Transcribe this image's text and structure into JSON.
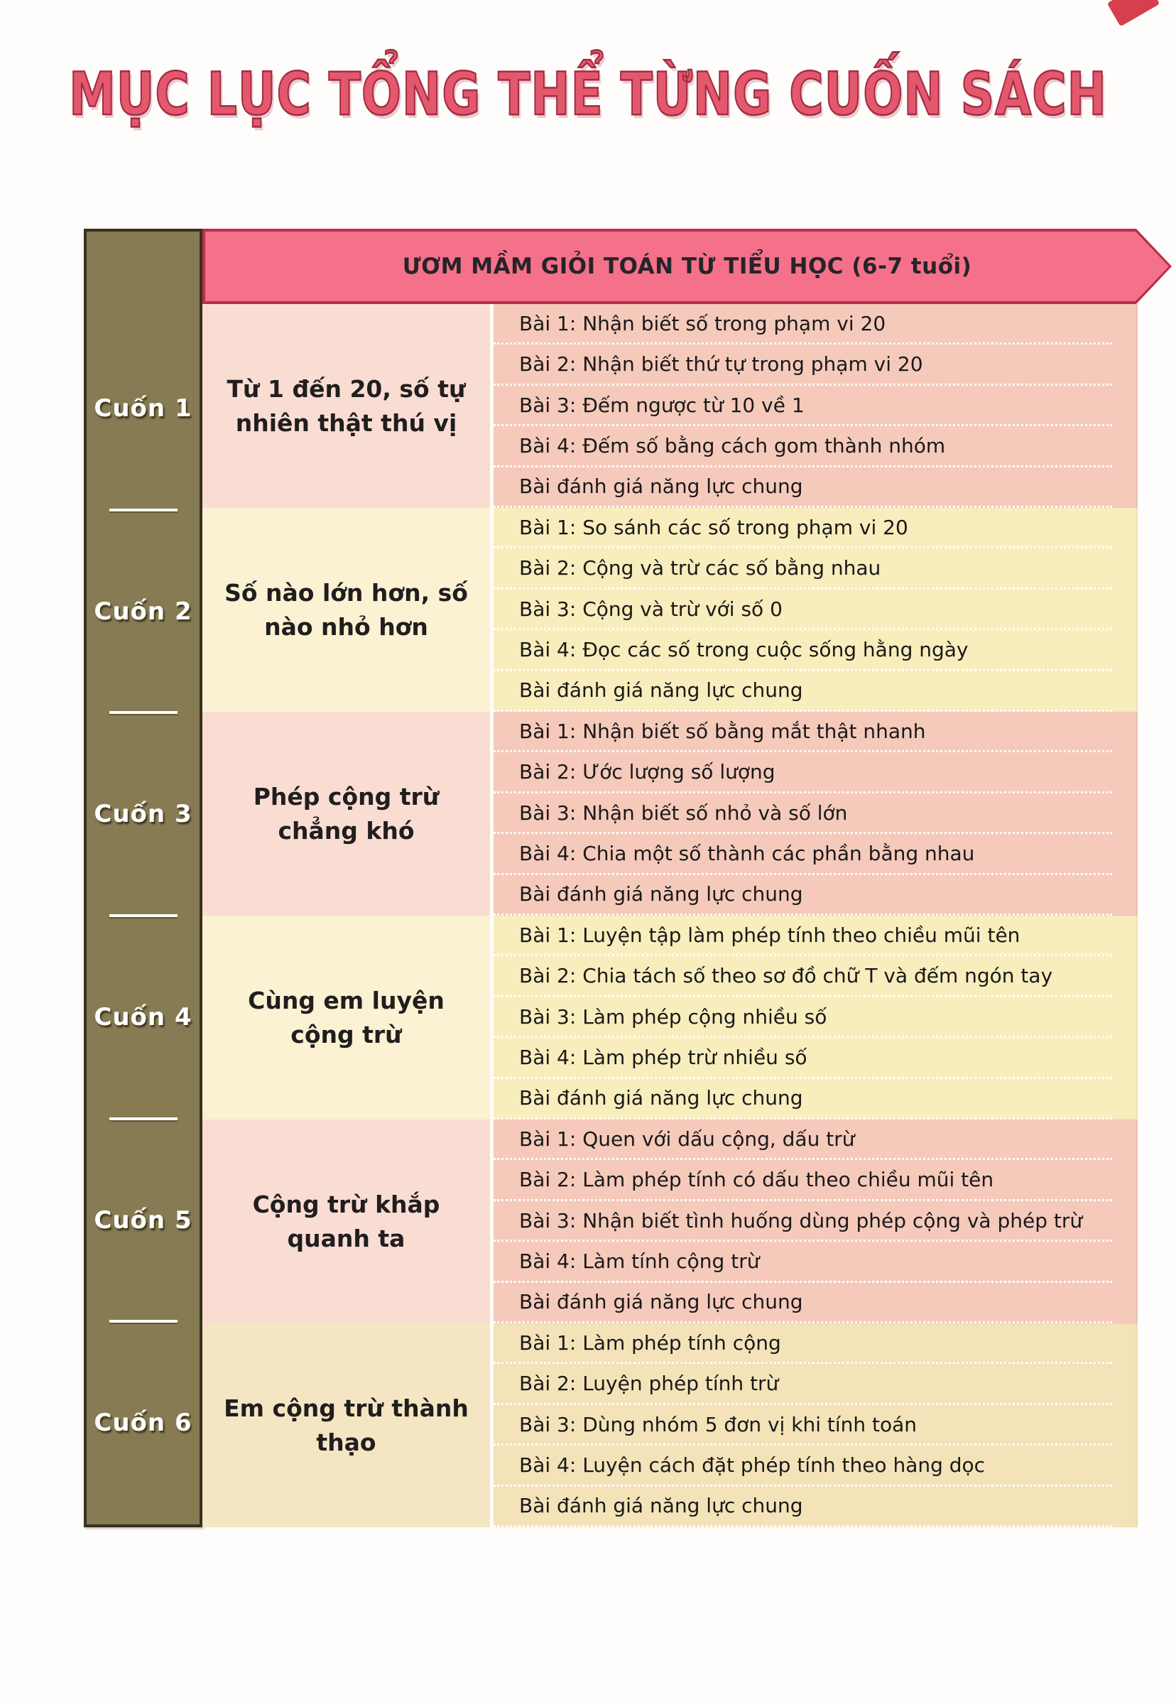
{
  "page_title": "MỤC LỤC TỔNG THỂ TỪNG CUỐN SÁCH",
  "table": {
    "header": "ƯƠM MẦM GIỎI TOÁN TỪ TIỂU HỌC (6-7 tuổi)",
    "sections": [
      {
        "book_label": "Cuốn 1",
        "topic": "Từ 1 đến 20, số tự nhiên thật thú vị",
        "tone": "pink",
        "lessons": [
          "Bài 1: Nhận biết số trong phạm vi 20",
          "Bài 2: Nhận biết thứ tự trong phạm vi 20",
          "Bài 3: Đếm ngược từ 10 về 1",
          "Bài 4: Đếm số bằng cách gom thành nhóm",
          "Bài đánh giá năng lực chung"
        ]
      },
      {
        "book_label": "Cuốn 2",
        "topic": "Số nào lớn hơn, số nào nhỏ hơn",
        "tone": "cream",
        "lessons": [
          "Bài 1: So sánh các số trong phạm vi 20",
          "Bài 2: Cộng và trừ các số bằng nhau",
          "Bài 3: Cộng và trừ với số 0",
          "Bài 4: Đọc các số trong cuộc sống hằng ngày",
          "Bài đánh giá năng lực chung"
        ]
      },
      {
        "book_label": "Cuốn 3",
        "topic": "Phép cộng trừ chẳng khó",
        "tone": "pink",
        "lessons": [
          "Bài 1: Nhận biết số bằng mắt thật nhanh",
          "Bài 2: Ước lượng số lượng",
          "Bài 3: Nhận biết số nhỏ và số lớn",
          "Bài 4: Chia một số thành các phần bằng nhau",
          "Bài đánh giá năng lực chung"
        ]
      },
      {
        "book_label": "Cuốn 4",
        "topic": "Cùng em luyện cộng trừ",
        "tone": "cream",
        "lessons": [
          "Bài 1: Luyện tập làm phép tính theo chiều mũi tên",
          "Bài 2: Chia tách số theo sơ đồ chữ T và đếm ngón tay",
          "Bài 3: Làm phép cộng nhiều số",
          "Bài 4: Làm phép trừ nhiều số",
          "Bài đánh giá năng lực chung"
        ]
      },
      {
        "book_label": "Cuốn 5",
        "topic": "Cộng trừ khắp quanh ta",
        "tone": "pink",
        "lessons": [
          "Bài 1: Quen với dấu cộng, dấu trừ",
          "Bài 2: Làm phép tính có dấu theo chiều mũi tên",
          "Bài 3: Nhận biết tình huống dùng phép cộng và phép trừ",
          "Bài 4: Làm tính cộng trừ",
          "Bài đánh giá năng lực chung"
        ]
      },
      {
        "book_label": "Cuốn 6",
        "topic": "Em cộng trừ thành thạo",
        "tone": "tan",
        "lessons": [
          "Bài 1: Làm phép tính cộng",
          "Bài 2: Luyện phép tính trừ",
          "Bài 3: Dùng nhóm 5 đơn vị khi tính toán",
          "Bài 4: Luyện cách đặt phép tính theo hàng dọc",
          "Bài đánh giá năng lực chung"
        ]
      }
    ]
  },
  "colors": {
    "title_pink": "#e4586d",
    "title_outline": "#a32c42",
    "banner_pink": "#f5718a",
    "banner_border": "#b92f4b",
    "sidebar_olive": "#867b53",
    "sidebar_border": "#38301d",
    "pink_row": "#f5cabb",
    "cream_row": "#f8edbc",
    "tan_row": "#f4e3b9"
  }
}
